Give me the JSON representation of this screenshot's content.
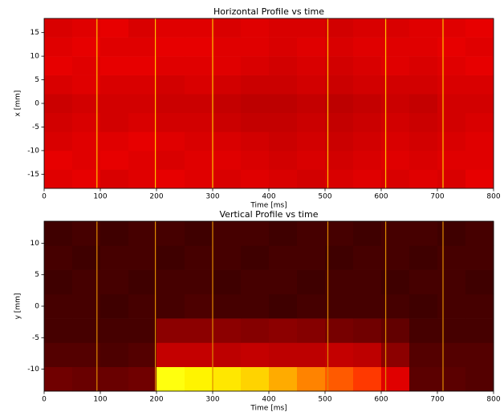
{
  "chart_data": [
    {
      "type": "heatmap",
      "title": "Horizontal Profile vs time",
      "xlabel": "Time [ms]",
      "ylabel": "x [mm]",
      "xlim": [
        0,
        800
      ],
      "xticks": [
        0,
        100,
        200,
        300,
        400,
        500,
        600,
        700,
        800
      ],
      "ylim": [
        -18,
        18
      ],
      "yticks": [
        -15,
        -10,
        -5,
        0,
        5,
        10,
        15
      ],
      "colormap": "hot",
      "zlim": [
        0,
        1
      ],
      "x_bins": [
        0,
        50,
        100,
        150,
        200,
        250,
        300,
        350,
        400,
        450,
        500,
        550,
        600,
        650,
        700,
        750,
        800
      ],
      "y_bins": [
        -18,
        -14,
        -10,
        -6,
        -2,
        2,
        6,
        10,
        14,
        18
      ],
      "z": [
        [
          0.32,
          0.33,
          0.31,
          0.32,
          0.33,
          0.32,
          0.31,
          0.32,
          0.31,
          0.3,
          0.31,
          0.32,
          0.31,
          0.32,
          0.31,
          0.33
        ],
        [
          0.33,
          0.32,
          0.33,
          0.32,
          0.31,
          0.32,
          0.32,
          0.31,
          0.3,
          0.31,
          0.3,
          0.31,
          0.32,
          0.31,
          0.32,
          0.32
        ],
        [
          0.31,
          0.32,
          0.32,
          0.33,
          0.32,
          0.31,
          0.31,
          0.3,
          0.29,
          0.3,
          0.29,
          0.3,
          0.31,
          0.3,
          0.31,
          0.32
        ],
        [
          0.3,
          0.31,
          0.3,
          0.31,
          0.3,
          0.3,
          0.29,
          0.28,
          0.28,
          0.29,
          0.28,
          0.29,
          0.3,
          0.29,
          0.3,
          0.31
        ],
        [
          0.29,
          0.3,
          0.3,
          0.3,
          0.29,
          0.29,
          0.28,
          0.27,
          0.27,
          0.28,
          0.27,
          0.28,
          0.29,
          0.28,
          0.3,
          0.3
        ],
        [
          0.31,
          0.32,
          0.31,
          0.31,
          0.3,
          0.31,
          0.3,
          0.29,
          0.29,
          0.3,
          0.29,
          0.3,
          0.3,
          0.3,
          0.31,
          0.31
        ],
        [
          0.33,
          0.32,
          0.33,
          0.33,
          0.32,
          0.32,
          0.32,
          0.31,
          0.3,
          0.31,
          0.3,
          0.31,
          0.32,
          0.31,
          0.32,
          0.33
        ],
        [
          0.32,
          0.33,
          0.32,
          0.32,
          0.33,
          0.33,
          0.32,
          0.32,
          0.31,
          0.32,
          0.31,
          0.32,
          0.32,
          0.32,
          0.33,
          0.32
        ],
        [
          0.31,
          0.32,
          0.33,
          0.31,
          0.32,
          0.32,
          0.31,
          0.32,
          0.31,
          0.31,
          0.3,
          0.31,
          0.31,
          0.32,
          0.32,
          0.33
        ]
      ],
      "highlight_times": [
        94,
        198,
        300,
        505,
        608,
        710
      ],
      "highlight_color": "#ffc400"
    },
    {
      "type": "heatmap",
      "title": "Vertical Profile vs time",
      "xlabel": "Time [ms]",
      "ylabel": "y [mm]",
      "xlim": [
        0,
        800
      ],
      "xticks": [
        0,
        100,
        200,
        300,
        400,
        500,
        600,
        700,
        800
      ],
      "ylim": [
        -13.5,
        13.5
      ],
      "yticks": [
        -10,
        -5,
        0,
        5,
        10
      ],
      "colormap": "hot",
      "zlim": [
        0,
        1
      ],
      "x_bins": [
        0,
        50,
        100,
        150,
        200,
        250,
        300,
        350,
        400,
        450,
        500,
        550,
        600,
        650,
        700,
        750,
        800
      ],
      "y_bins": [
        -13.5,
        -9.64,
        -5.79,
        -1.93,
        1.93,
        5.79,
        9.64,
        13.5
      ],
      "z": [
        [
          0.16,
          0.15,
          0.15,
          0.16,
          0.76,
          0.73,
          0.71,
          0.68,
          0.62,
          0.56,
          0.5,
          0.45,
          0.32,
          0.13,
          0.13,
          0.12
        ],
        [
          0.12,
          0.12,
          0.11,
          0.12,
          0.28,
          0.28,
          0.27,
          0.28,
          0.27,
          0.27,
          0.28,
          0.27,
          0.2,
          0.12,
          0.12,
          0.12
        ],
        [
          0.1,
          0.1,
          0.1,
          0.1,
          0.2,
          0.2,
          0.2,
          0.19,
          0.2,
          0.19,
          0.17,
          0.16,
          0.14,
          0.1,
          0.1,
          0.1
        ],
        [
          0.1,
          0.1,
          0.09,
          0.1,
          0.1,
          0.11,
          0.1,
          0.1,
          0.09,
          0.1,
          0.1,
          0.1,
          0.1,
          0.09,
          0.1,
          0.1
        ],
        [
          0.09,
          0.1,
          0.1,
          0.09,
          0.1,
          0.1,
          0.09,
          0.1,
          0.1,
          0.09,
          0.1,
          0.1,
          0.09,
          0.1,
          0.1,
          0.09
        ],
        [
          0.1,
          0.09,
          0.1,
          0.1,
          0.09,
          0.1,
          0.1,
          0.09,
          0.1,
          0.1,
          0.09,
          0.1,
          0.1,
          0.09,
          0.1,
          0.1
        ],
        [
          0.09,
          0.1,
          0.09,
          0.1,
          0.1,
          0.09,
          0.1,
          0.1,
          0.09,
          0.1,
          0.1,
          0.09,
          0.1,
          0.1,
          0.09,
          0.1
        ]
      ],
      "highlight_times": [
        94,
        198,
        300,
        505,
        608,
        710
      ],
      "highlight_color": "#e08a00"
    }
  ]
}
